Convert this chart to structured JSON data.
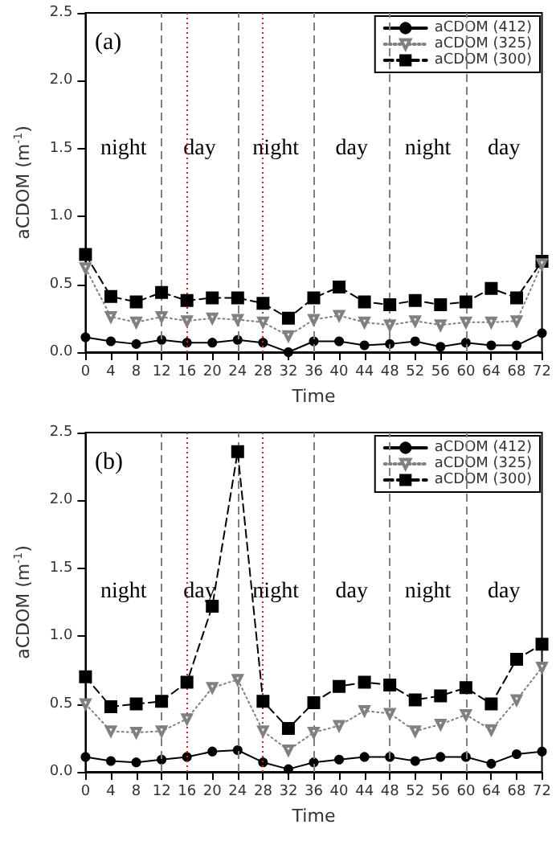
{
  "chart_data": [
    {
      "type": "line",
      "title": "(a)",
      "xlabel": "Time",
      "ylabel": "aCDOM (m$^{-1}$)",
      "x": [
        0,
        4,
        8,
        12,
        16,
        20,
        24,
        28,
        32,
        36,
        40,
        44,
        48,
        52,
        56,
        60,
        64,
        68,
        72
      ],
      "series": [
        {
          "name": "aCDOM (412)",
          "color": "#000000",
          "marker": "circle",
          "line_style": "solid",
          "values": [
            0.11,
            0.08,
            0.06,
            0.09,
            0.07,
            0.07,
            0.09,
            0.07,
            0.0,
            0.08,
            0.08,
            0.05,
            0.06,
            0.08,
            0.04,
            0.07,
            0.05,
            0.05,
            0.14
          ]
        },
        {
          "name": "aCDOM (325)",
          "color": "#808080",
          "marker": "triangle",
          "line_style": "dotted",
          "values": [
            0.62,
            0.26,
            0.22,
            0.26,
            0.23,
            0.25,
            0.24,
            0.22,
            0.12,
            0.24,
            0.27,
            0.22,
            0.2,
            0.23,
            0.2,
            0.22,
            0.22,
            0.23,
            0.65
          ]
        },
        {
          "name": "aCDOM (300)",
          "color": "#000000",
          "marker": "square",
          "line_style": "dashed",
          "values": [
            0.72,
            0.41,
            0.37,
            0.44,
            0.38,
            0.4,
            0.4,
            0.36,
            0.25,
            0.4,
            0.48,
            0.37,
            0.35,
            0.38,
            0.35,
            0.37,
            0.47,
            0.4,
            0.67
          ]
        }
      ],
      "xlim": [
        0,
        72
      ],
      "xticks": [
        0,
        4,
        8,
        12,
        16,
        20,
        24,
        28,
        32,
        36,
        40,
        44,
        48,
        52,
        56,
        60,
        64,
        68,
        72
      ],
      "ylim": [
        0,
        2.5
      ],
      "yticks": [
        {
          "value": 0,
          "label": "0.0"
        },
        0.5,
        {
          "value": 1,
          "label": "1.0"
        },
        1.5,
        {
          "value": 2,
          "label": "2.0"
        },
        2.5
      ],
      "ref_lines": [
        {
          "axis": "x",
          "value": 12,
          "color": "#808080",
          "line_style": "dashed"
        },
        {
          "axis": "x",
          "value": 24,
          "color": "#808080",
          "line_style": "dashed"
        },
        {
          "axis": "x",
          "value": 36,
          "color": "#808080",
          "line_style": "dashed"
        },
        {
          "axis": "x",
          "value": 48,
          "color": "#808080",
          "line_style": "dashed"
        },
        {
          "axis": "x",
          "value": 60,
          "color": "#808080",
          "line_style": "dashed"
        },
        {
          "axis": "x",
          "value": 16,
          "color": "#e02020",
          "line_style": "dotted"
        },
        {
          "axis": "x",
          "value": 28,
          "color": "#e02020",
          "line_style": "dotted"
        }
      ],
      "annotations": [
        "night",
        "day",
        "night",
        "day",
        "night",
        "day"
      ],
      "grid": false,
      "legend": "top right"
    },
    {
      "type": "line",
      "title": "(b)",
      "xlabel": "Time",
      "ylabel": "aCDOM (m$^{-1}$)",
      "x": [
        0,
        4,
        8,
        12,
        16,
        20,
        24,
        28,
        32,
        36,
        40,
        44,
        48,
        52,
        56,
        60,
        64,
        68,
        72
      ],
      "series": [
        {
          "name": "aCDOM (412)",
          "color": "#000000",
          "marker": "circle",
          "line_style": "solid",
          "values": [
            0.11,
            0.08,
            0.07,
            0.09,
            0.11,
            0.15,
            0.16,
            0.07,
            0.02,
            0.07,
            0.09,
            0.11,
            0.11,
            0.08,
            0.11,
            0.11,
            0.06,
            0.13,
            0.15
          ]
        },
        {
          "name": "aCDOM (325)",
          "color": "#808080",
          "marker": "triangle",
          "line_style": "dotted",
          "values": [
            0.5,
            0.3,
            0.29,
            0.3,
            0.39,
            0.62,
            0.68,
            0.3,
            0.16,
            0.29,
            0.34,
            0.45,
            0.43,
            0.3,
            0.35,
            0.42,
            0.31,
            0.53,
            0.77
          ]
        },
        {
          "name": "aCDOM (300)",
          "color": "#000000",
          "marker": "square",
          "line_style": "dashed",
          "values": [
            0.7,
            0.48,
            0.5,
            0.52,
            0.66,
            1.22,
            2.36,
            0.52,
            0.32,
            0.51,
            0.63,
            0.66,
            0.64,
            0.53,
            0.56,
            0.62,
            0.5,
            0.83,
            0.94
          ]
        }
      ],
      "xlim": [
        0,
        72
      ],
      "xticks": [
        0,
        4,
        8,
        12,
        16,
        20,
        24,
        28,
        32,
        36,
        40,
        44,
        48,
        52,
        56,
        60,
        64,
        68,
        72
      ],
      "ylim": [
        0,
        2.5
      ],
      "yticks": [
        {
          "value": 0,
          "label": "0.0"
        },
        0.5,
        {
          "value": 1,
          "label": "1.0"
        },
        1.5,
        {
          "value": 2,
          "label": "2.0"
        },
        2.5
      ],
      "ref_lines": [
        {
          "axis": "x",
          "value": 12,
          "color": "#808080",
          "line_style": "dashed"
        },
        {
          "axis": "x",
          "value": 24,
          "color": "#808080",
          "line_style": "dashed"
        },
        {
          "axis": "x",
          "value": 36,
          "color": "#808080",
          "line_style": "dashed"
        },
        {
          "axis": "x",
          "value": 48,
          "color": "#808080",
          "line_style": "dashed"
        },
        {
          "axis": "x",
          "value": 60,
          "color": "#808080",
          "line_style": "dashed"
        },
        {
          "axis": "x",
          "value": 16,
          "color": "#e02020",
          "line_style": "dotted"
        },
        {
          "axis": "x",
          "value": 28,
          "color": "#e02020",
          "line_style": "dotted"
        }
      ],
      "annotations": [
        "night",
        "day",
        "night",
        "day",
        "night",
        "day"
      ],
      "grid": false,
      "legend": "top right"
    }
  ]
}
